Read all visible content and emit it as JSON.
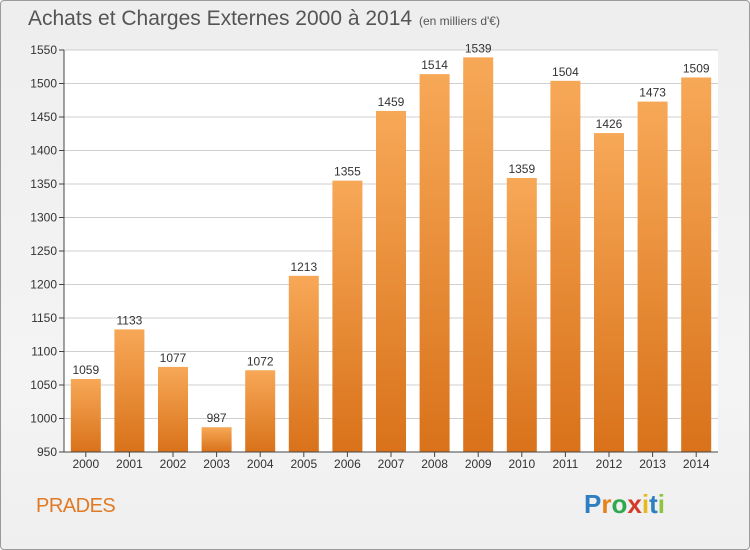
{
  "title": "Achats et Charges Externes 2000 à 2014",
  "subtitle": "(en milliers d'€)",
  "place": "PRADES",
  "logo": {
    "text": "Proxiti",
    "letters": [
      "P",
      "r",
      "o",
      "x",
      "i",
      "t",
      "i"
    ],
    "colors": [
      "#2e7fc1",
      "#e8811c",
      "#2fa84f",
      "#d43a2a",
      "#e8b91c",
      "#2e7fc1",
      "#8cc63e"
    ]
  },
  "colors": {
    "bar_light": "#f7a857",
    "bar_dark": "#d9721a",
    "grid": "#cfcfcf",
    "axis": "#444444",
    "text": "#333333"
  },
  "chart_data": {
    "type": "bar",
    "categories": [
      "2000",
      "2001",
      "2002",
      "2003",
      "2004",
      "2005",
      "2006",
      "2007",
      "2008",
      "2009",
      "2010",
      "2011",
      "2012",
      "2013",
      "2014"
    ],
    "values": [
      1059,
      1133,
      1077,
      987,
      1072,
      1213,
      1355,
      1459,
      1514,
      1539,
      1359,
      1504,
      1426,
      1473,
      1509
    ],
    "data_labels": [
      "1059",
      "1133",
      "1077",
      "987",
      "1072",
      "1213",
      "1355",
      "1459",
      "1514",
      "1539",
      "1359",
      "1504",
      "1426",
      "1473",
      "1509"
    ],
    "title": "Achats et Charges Externes 2000 à 2014",
    "xlabel": "",
    "ylabel": "",
    "ylim": [
      950,
      1550
    ],
    "yticks": [
      950,
      1000,
      1050,
      1100,
      1150,
      1200,
      1250,
      1300,
      1350,
      1400,
      1450,
      1500,
      1550
    ],
    "grid": true,
    "legend": "none"
  }
}
